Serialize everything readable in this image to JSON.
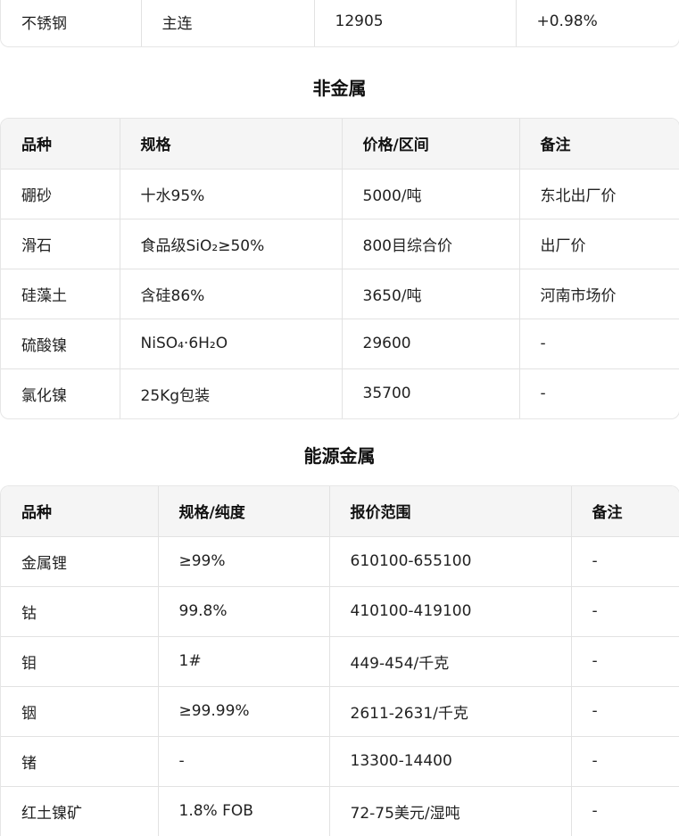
{
  "top_table": {
    "rows": [
      [
        "不锈钢",
        "主连",
        "12905",
        "+0.98%"
      ]
    ]
  },
  "nonmetal": {
    "title": "非金属",
    "headers": [
      "品种",
      "规格",
      "价格/区间",
      "备注"
    ],
    "rows": [
      [
        "硼砂",
        "十水95%",
        "5000/吨",
        "东北出厂价"
      ],
      [
        "滑石",
        "食品级SiO₂≥50%",
        "800目综合价",
        "出厂价"
      ],
      [
        "硅藻土",
        "含硅86%",
        "3650/吨",
        "河南市场价"
      ],
      [
        "硫酸镍",
        "NiSO₄·6H₂O",
        "29600",
        "-"
      ],
      [
        "氯化镍",
        "25Kg包装",
        "35700",
        "-"
      ]
    ]
  },
  "energy": {
    "title": "能源金属",
    "headers": [
      "品种",
      "规格/纯度",
      "报价范围",
      "备注"
    ],
    "rows": [
      [
        "金属锂",
        "≥99%",
        "610100-655100",
        "-"
      ],
      [
        "钴",
        "99.8%",
        "410100-419100",
        "-"
      ],
      [
        "钼",
        "1#",
        "449-454/千克",
        "-"
      ],
      [
        "铟",
        "≥99.99%",
        "2611-2631/千克",
        "-"
      ],
      [
        "锗",
        "-",
        "13300-14400",
        "-"
      ],
      [
        "红土镍矿",
        "1.8% FOB",
        "72-75美元/湿吨",
        "-"
      ]
    ]
  }
}
